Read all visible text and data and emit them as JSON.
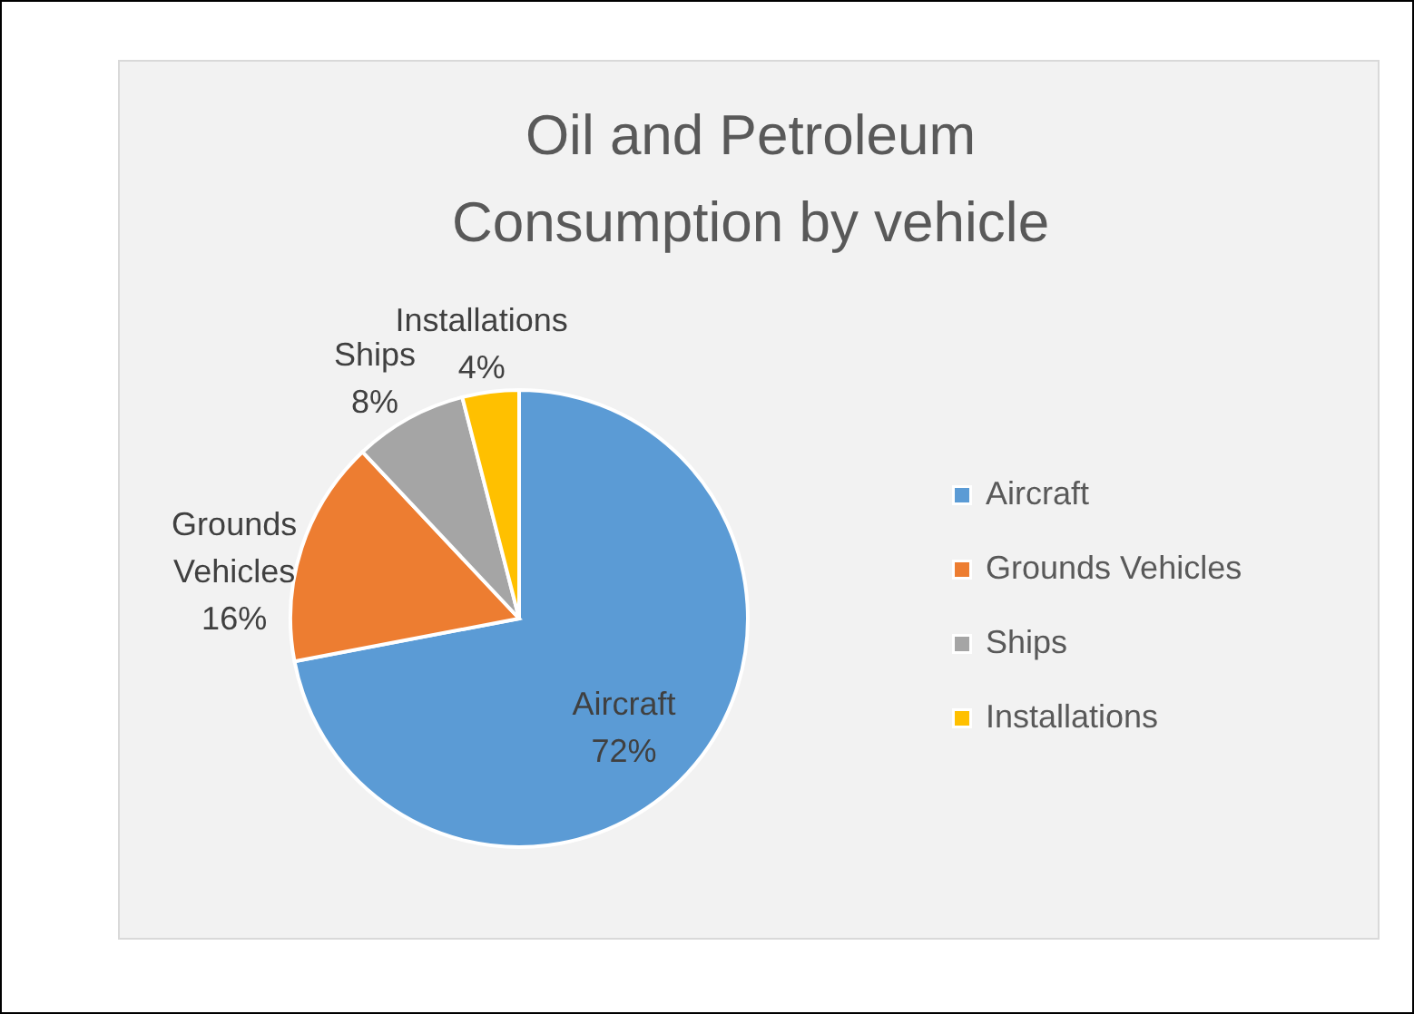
{
  "chart_data": {
    "type": "pie",
    "title": "Oil and Petroleum Consumption by vehicle",
    "categories": [
      "Aircraft",
      "Grounds Vehicles",
      "Ships",
      "Installations"
    ],
    "values": [
      72,
      16,
      8,
      4
    ],
    "value_labels": [
      "72%",
      "16%",
      "8%",
      "4%"
    ],
    "colors": [
      "#5b9bd5",
      "#ed7d31",
      "#a5a5a5",
      "#ffc000"
    ],
    "legend": "right"
  }
}
